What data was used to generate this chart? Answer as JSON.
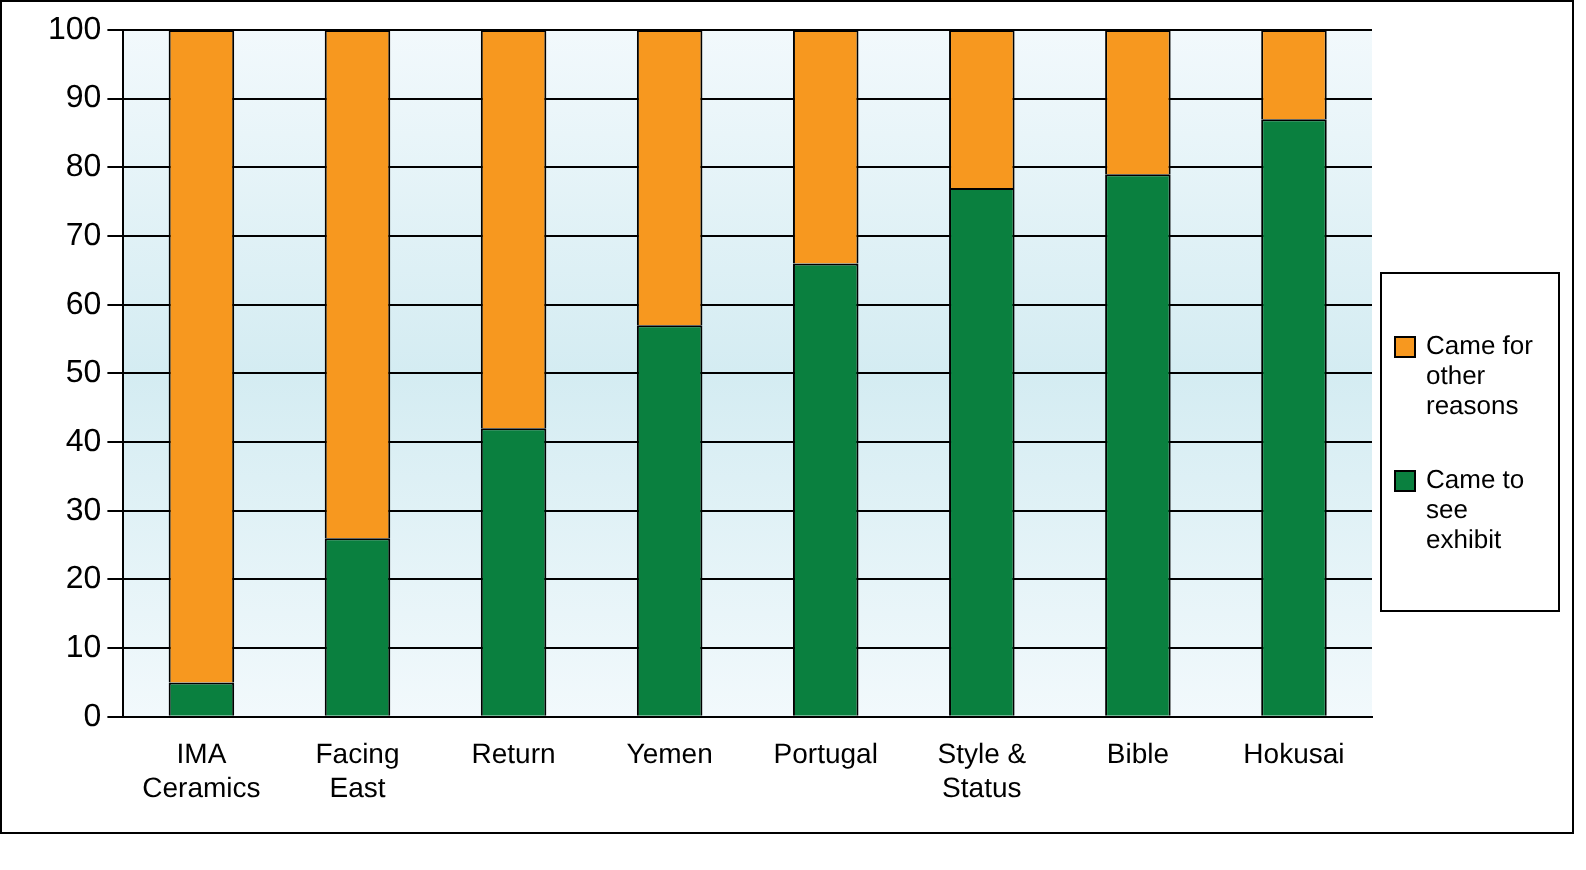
{
  "chart_data": {
    "type": "bar",
    "stacked": true,
    "categories": [
      "IMA Ceramics",
      "Facing East",
      "Return",
      "Yemen",
      "Portugal",
      "Style & Status",
      "Bible",
      "Hokusai"
    ],
    "series": [
      {
        "name": "Came to see exhibit",
        "color": "#0a803f",
        "values": [
          5,
          26,
          42,
          57,
          66,
          77,
          79,
          87
        ]
      },
      {
        "name": "Came for other reasons",
        "color": "#f7981f",
        "values": [
          95,
          74,
          58,
          43,
          34,
          23,
          21,
          13
        ]
      }
    ],
    "ylim": [
      0,
      100
    ],
    "yticks": [
      0,
      10,
      20,
      30,
      40,
      50,
      60,
      70,
      80,
      90,
      100
    ],
    "grid": "y",
    "legend": "right"
  }
}
